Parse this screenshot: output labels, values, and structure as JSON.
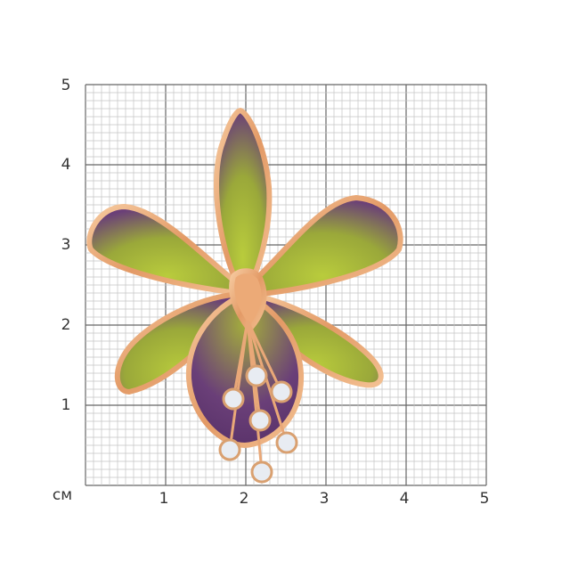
{
  "scale": {
    "unit_label": "см",
    "x_ticks": [
      "1",
      "2",
      "3",
      "4",
      "5"
    ],
    "y_ticks": [
      "1",
      "2",
      "3",
      "4",
      "5"
    ],
    "major_divisions": 5,
    "minor_per_major": 10
  },
  "product": {
    "colors": {
      "gold": "#e9a878",
      "purple": "#6a3f78",
      "green": "#b5c63a",
      "grid_major": "#666666",
      "grid_minor": "#c4c4c4"
    }
  }
}
